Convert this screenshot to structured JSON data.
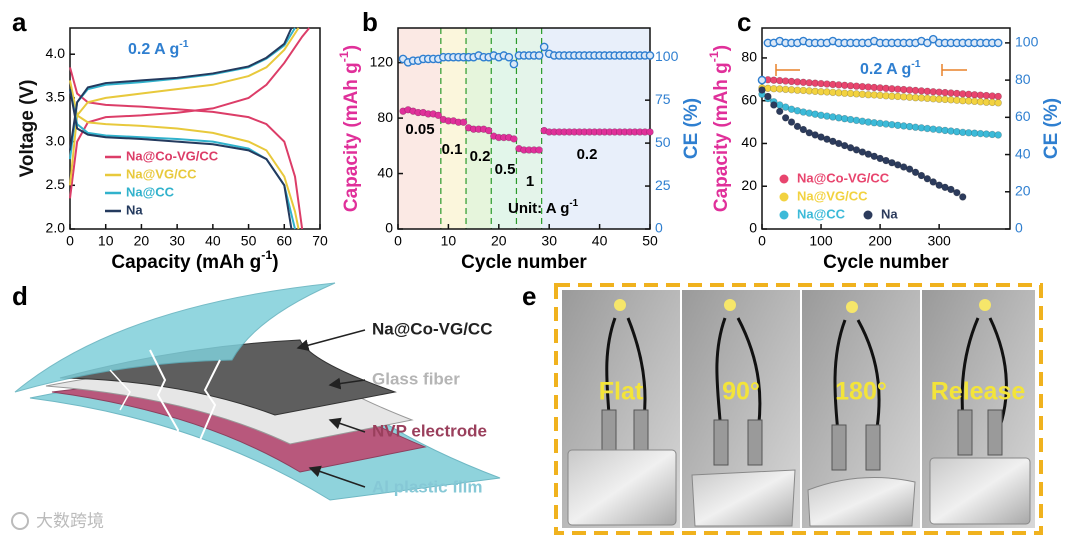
{
  "panel_labels": [
    "a",
    "b",
    "c",
    "d",
    "e"
  ],
  "chart_data": [
    {
      "type": "line",
      "xlabel": [
        "Capacity (mAh g",
        "-1",
        ")"
      ],
      "ylabel": [
        "Voltage (V)"
      ],
      "annotation": [
        "0.2 A g",
        "-1"
      ],
      "legend": "lower left",
      "xlim": [
        0,
        70
      ],
      "xticks": [
        0,
        10,
        20,
        30,
        40,
        50,
        60,
        70
      ],
      "ylim": [
        2,
        4.3
      ],
      "yticks": [
        {
          "value": 2,
          "label": "2.0"
        },
        2.5,
        {
          "value": 3,
          "label": "3.0"
        },
        3.5,
        {
          "value": 4,
          "label": "4.0"
        }
      ],
      "series": [
        {
          "name": "Na@Co-VG/CC",
          "color": "#dc3d68",
          "x": [
            0,
            2,
            5,
            10,
            20,
            30,
            40,
            50,
            55,
            60,
            63,
            65,
            null,
            0,
            2,
            5,
            10,
            20,
            30,
            40,
            50,
            55,
            60,
            65,
            67
          ],
          "values": [
            3.85,
            3.55,
            3.45,
            3.42,
            3.4,
            3.37,
            3.34,
            3.28,
            3.2,
            3.0,
            2.6,
            2.0,
            null,
            2.35,
            3.0,
            3.22,
            3.28,
            3.3,
            3.33,
            3.38,
            3.5,
            3.65,
            3.9,
            4.2,
            4.3
          ]
        },
        {
          "name": "Na@VG/CC",
          "color": "#e8c93c",
          "x": [
            0,
            2,
            5,
            10,
            20,
            30,
            40,
            50,
            55,
            60,
            63,
            64,
            null,
            0,
            2,
            5,
            10,
            20,
            30,
            40,
            50,
            55,
            60,
            64
          ],
          "values": [
            3.7,
            3.3,
            3.22,
            3.2,
            3.18,
            3.15,
            3.1,
            3.0,
            2.9,
            2.6,
            2.2,
            2.0,
            null,
            2.5,
            3.3,
            3.45,
            3.5,
            3.55,
            3.6,
            3.65,
            3.75,
            3.85,
            4.05,
            4.3
          ]
        },
        {
          "name": "Na@CC",
          "color": "#31b2cc",
          "x": [
            0,
            2,
            5,
            10,
            20,
            30,
            40,
            50,
            55,
            60,
            63,
            null,
            0,
            2,
            5,
            10,
            20,
            30,
            40,
            50,
            55,
            60,
            63
          ],
          "values": [
            3.6,
            3.2,
            3.1,
            3.07,
            3.05,
            3.03,
            3.0,
            2.92,
            2.8,
            2.5,
            2.0,
            null,
            2.8,
            3.45,
            3.6,
            3.65,
            3.68,
            3.72,
            3.77,
            3.85,
            3.95,
            4.1,
            4.3
          ]
        },
        {
          "name": "Na",
          "color": "#243a5e",
          "x": [
            0,
            2,
            5,
            10,
            20,
            30,
            40,
            50,
            55,
            60,
            62,
            null,
            0,
            2,
            5,
            10,
            20,
            30,
            40,
            50,
            55,
            60,
            62
          ],
          "values": [
            3.6,
            3.15,
            3.08,
            3.05,
            3.03,
            3.0,
            2.97,
            2.9,
            2.8,
            2.5,
            2.0,
            null,
            2.9,
            3.45,
            3.62,
            3.67,
            3.7,
            3.73,
            3.78,
            3.86,
            3.96,
            4.12,
            4.3
          ]
        }
      ]
    },
    {
      "type": "scatter",
      "xlabel": [
        "Cycle number"
      ],
      "ylabel": [
        "Capacity (mAh g",
        "-1",
        ")"
      ],
      "y2label": [
        "CE (%)"
      ],
      "ylabel_color": "#e0309a",
      "y2label_color": "#2f7fd0",
      "annotations": [
        "0.05",
        "0.1",
        "0.2",
        "0.5",
        "1",
        "0.2"
      ],
      "unit_label": [
        "Unit: A g",
        "-1"
      ],
      "dividers": [
        8.5,
        13.5,
        18.5,
        23.5,
        28.5
      ],
      "region_colors": [
        "#fbe9e4",
        "#fbf6dc",
        "#e6f5dc",
        "#e2f6ea",
        "#e4f4ea",
        "#e8effa"
      ],
      "xlim": [
        0,
        50
      ],
      "xticks": [
        0,
        10,
        20,
        30,
        40,
        50
      ],
      "ylim": [
        0,
        145
      ],
      "yticks": [
        0,
        40,
        80,
        120
      ],
      "y2lim": [
        0,
        117
      ],
      "y2ticks": [
        0,
        25,
        50,
        75,
        100
      ],
      "series": [
        {
          "color": "#e0309a",
          "marker": "filled",
          "x": [
            1,
            2,
            3,
            4,
            5,
            6,
            7,
            8,
            9,
            10,
            11,
            12,
            13,
            14,
            15,
            16,
            17,
            18,
            19,
            20,
            21,
            22,
            23,
            24,
            25,
            26,
            27,
            28,
            29,
            30,
            31,
            32,
            33,
            34,
            35,
            36,
            37,
            38,
            39,
            40,
            41,
            42,
            43,
            44,
            45,
            46,
            47,
            48,
            49,
            50
          ],
          "values": [
            85,
            86,
            85,
            84,
            84,
            83,
            83,
            82,
            79,
            78,
            78,
            77,
            77,
            73,
            72,
            72,
            72,
            71,
            67,
            66,
            66,
            66,
            65,
            58,
            57,
            57,
            57,
            57,
            71,
            70,
            70,
            70,
            70,
            70,
            70,
            70,
            70,
            70,
            70,
            70,
            70,
            70,
            70,
            70,
            70,
            70,
            70,
            70,
            70,
            70
          ]
        },
        {
          "color": "#2f7fd0",
          "marker": "open",
          "axis": "y2",
          "x": [
            1,
            2,
            3,
            4,
            5,
            6,
            7,
            8,
            9,
            10,
            11,
            12,
            13,
            14,
            15,
            16,
            17,
            18,
            19,
            20,
            21,
            22,
            23,
            24,
            25,
            26,
            27,
            28,
            29,
            30,
            31,
            32,
            33,
            34,
            35,
            36,
            37,
            38,
            39,
            40,
            41,
            42,
            43,
            44,
            45,
            46,
            47,
            48,
            49,
            50
          ],
          "values": [
            99,
            97,
            98,
            98,
            99,
            99,
            99,
            99,
            100,
            100,
            100,
            100,
            100,
            100,
            100,
            101,
            100,
            100,
            101,
            100,
            101,
            100,
            96,
            101,
            101,
            101,
            101,
            101,
            106,
            102,
            101,
            101,
            101,
            101,
            101,
            101,
            101,
            101,
            101,
            101,
            101,
            101,
            101,
            101,
            101,
            101,
            101,
            101,
            101,
            101
          ]
        }
      ]
    },
    {
      "type": "scatter",
      "xlabel": [
        "Cycle number"
      ],
      "ylabel": [
        "Capacity (mAh g",
        "-1",
        ")"
      ],
      "y2label": [
        "CE (%)"
      ],
      "ylabel_color": "#e0309a",
      "y2label_color": "#2f7fd0",
      "annotation": [
        "0.2 A g",
        "-1"
      ],
      "legend": "lower left",
      "xlim": [
        0,
        420
      ],
      "xticks": [
        0,
        100,
        200,
        300
      ],
      "ylim": [
        0,
        94
      ],
      "yticks": [
        0,
        20,
        40,
        60,
        80
      ],
      "y2lim": [
        0,
        108
      ],
      "y2ticks": [
        0,
        20,
        40,
        60,
        80,
        100
      ],
      "series": [
        {
          "name": "Na@Co-VG/CC",
          "color": "#e8456e",
          "marker": "filled",
          "x": [
            0,
            10,
            20,
            30,
            40,
            50,
            60,
            70,
            80,
            90,
            100,
            110,
            120,
            130,
            140,
            150,
            160,
            170,
            180,
            190,
            200,
            210,
            220,
            230,
            240,
            250,
            260,
            270,
            280,
            290,
            300,
            310,
            320,
            330,
            340,
            350,
            360,
            370,
            380,
            390,
            400
          ],
          "values": [
            70,
            69.8,
            69.6,
            69.4,
            69.2,
            69,
            68.8,
            68.6,
            68.4,
            68.2,
            68,
            67.8,
            67.6,
            67.4,
            67.2,
            67,
            66.8,
            66.6,
            66.4,
            66.2,
            66,
            65.8,
            65.6,
            65.4,
            65.2,
            65,
            64.8,
            64.6,
            64.4,
            64.2,
            64,
            63.8,
            63.6,
            63.4,
            63.2,
            63,
            62.8,
            62.6,
            62.4,
            62.2,
            62
          ]
        },
        {
          "name": "Na@VG/CC",
          "color": "#f2d240",
          "marker": "filled",
          "x": [
            0,
            10,
            20,
            30,
            40,
            50,
            60,
            70,
            80,
            90,
            100,
            110,
            120,
            130,
            140,
            150,
            160,
            170,
            180,
            190,
            200,
            210,
            220,
            230,
            240,
            250,
            260,
            270,
            280,
            290,
            300,
            310,
            320,
            330,
            340,
            350,
            360,
            370,
            380,
            390,
            400
          ],
          "values": [
            66,
            65.8,
            65.6,
            65.5,
            65.3,
            65.1,
            64.9,
            64.8,
            64.6,
            64.4,
            64.2,
            64.1,
            63.9,
            63.7,
            63.5,
            63.4,
            63.2,
            63,
            62.8,
            62.7,
            62.5,
            62.3,
            62.1,
            62,
            61.8,
            61.6,
            61.4,
            61.3,
            61.1,
            60.9,
            60.7,
            60.6,
            60.4,
            60.2,
            60,
            59.9,
            59.7,
            59.5,
            59.3,
            59.2,
            59
          ]
        },
        {
          "name": "Na@CC",
          "color": "#3cbad8",
          "marker": "filled",
          "x": [
            0,
            10,
            20,
            30,
            40,
            50,
            60,
            70,
            80,
            90,
            100,
            110,
            120,
            130,
            140,
            150,
            160,
            170,
            180,
            190,
            200,
            210,
            220,
            230,
            240,
            250,
            260,
            270,
            280,
            290,
            300,
            310,
            320,
            330,
            340,
            350,
            360,
            370,
            380,
            390,
            400
          ],
          "values": [
            63,
            61,
            59.5,
            58,
            57,
            56,
            55.3,
            54.7,
            54.2,
            53.7,
            53.2,
            52.8,
            52.4,
            52,
            51.6,
            51.2,
            50.8,
            50.4,
            50,
            49.7,
            49.4,
            49.1,
            48.8,
            48.5,
            48.2,
            47.9,
            47.6,
            47.3,
            47,
            46.7,
            46.4,
            46.1,
            45.8,
            45.5,
            45.2,
            45,
            44.8,
            44.6,
            44.4,
            44.2,
            44
          ]
        },
        {
          "name": "Na",
          "color": "#2c3b5c",
          "marker": "filled",
          "x": [
            0,
            10,
            20,
            30,
            40,
            50,
            60,
            70,
            80,
            90,
            100,
            110,
            120,
            130,
            140,
            150,
            160,
            170,
            180,
            190,
            200,
            210,
            220,
            230,
            240,
            250,
            260,
            270,
            280,
            290,
            300,
            310,
            320,
            330,
            340
          ],
          "values": [
            65,
            62,
            58,
            55,
            52,
            50,
            48,
            46.5,
            45,
            44,
            43,
            42,
            41,
            40,
            39,
            38,
            37,
            36,
            35,
            34,
            33,
            32,
            31,
            30,
            29,
            28,
            26.5,
            25,
            23.5,
            22,
            20.5,
            19.5,
            18.5,
            17,
            15
          ]
        },
        {
          "color": "#2f7fd0",
          "marker": "open",
          "axis": "y2",
          "x": [
            0,
            10,
            20,
            30,
            40,
            50,
            60,
            70,
            80,
            90,
            100,
            110,
            120,
            130,
            140,
            150,
            160,
            170,
            180,
            190,
            200,
            210,
            220,
            230,
            240,
            250,
            260,
            270,
            280,
            290,
            300,
            310,
            320,
            330,
            340,
            350,
            360,
            370,
            380,
            390,
            400
          ],
          "values": [
            80,
            100,
            100,
            101,
            100,
            100,
            100,
            101,
            100,
            100,
            100,
            100,
            101,
            100,
            100,
            100,
            100,
            100,
            100,
            101,
            100,
            100,
            100,
            100,
            100,
            100,
            100,
            101,
            100,
            102,
            100,
            100,
            100,
            100,
            100,
            100,
            100,
            100,
            100,
            100,
            100
          ]
        }
      ]
    }
  ],
  "diagram": {
    "layers": [
      "Na@Co-VG/CC",
      "Glass fiber",
      "NVP electrode",
      "Al plastic film"
    ]
  },
  "photos": {
    "labels": [
      "Flat",
      "90°",
      "180°",
      "Release"
    ]
  },
  "watermark": "大数跨境"
}
